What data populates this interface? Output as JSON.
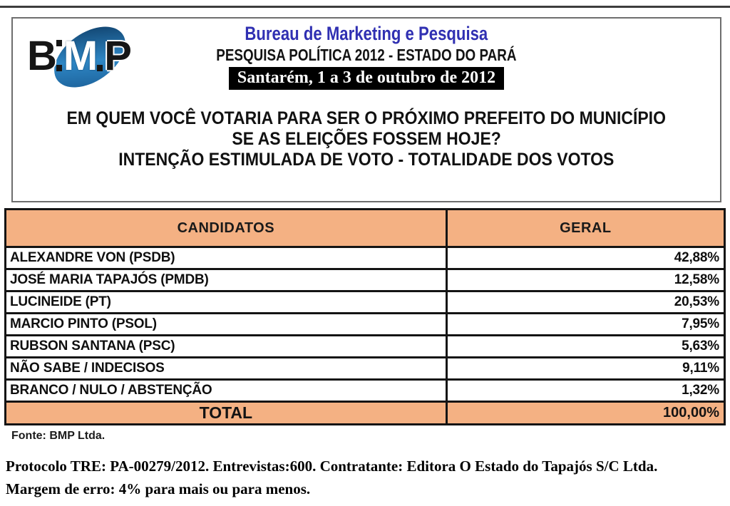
{
  "header": {
    "logo": {
      "letter_b": "B",
      "letter_m": "M",
      "letter_p": "P",
      "ellipse_color": "#2e86c4"
    },
    "org_title": "Bureau de Marketing e Pesquisa",
    "org_title_color": "#3030b2",
    "subtitle": "PESQUISA POLÍTICA 2012 - ESTADO DO PARÁ",
    "date_banner": "Santarém, 1 a 3 de outubro de 2012",
    "question_line1": "EM QUEM VOCÊ VOTARIA PARA SER O PRÓXIMO PREFEITO DO MUNICÍPIO",
    "question_line2": "SE AS ELEIÇÕES FOSSEM HOJE?",
    "question_line3": "INTENÇÃO ESTIMULADA DE VOTO - TOTALIDADE DOS VOTOS"
  },
  "table": {
    "header_bg": "#f4b183",
    "columns": {
      "col1": "CANDIDATOS",
      "col2": "GERAL"
    },
    "rows": [
      {
        "label": "ALEXANDRE VON (PSDB)",
        "value": "42,88%"
      },
      {
        "label": "JOSÉ MARIA TAPAJÓS (PMDB)",
        "value": "12,58%"
      },
      {
        "label": "LUCINEIDE (PT)",
        "value": "20,53%"
      },
      {
        "label": "MARCIO PINTO (PSOL)",
        "value": "7,95%"
      },
      {
        "label": "RUBSON SANTANA (PSC)",
        "value": "5,63%"
      },
      {
        "label": "NÃO SABE / INDECISOS",
        "value": "9,11%"
      },
      {
        "label": "BRANCO / NULO / ABSTENÇÃO",
        "value": "1,32%"
      }
    ],
    "total": {
      "label": "TOTAL",
      "value": "100,00%"
    }
  },
  "footer": {
    "fonte": "Fonte: BMP Ltda.",
    "protocol_line": "Protocolo TRE: PA-00279/2012. Entrevistas:600. Contratante: Editora O Estado do Tapajós S/C Ltda.",
    "margin_line": "Margem de erro: 4% para mais ou para menos."
  }
}
